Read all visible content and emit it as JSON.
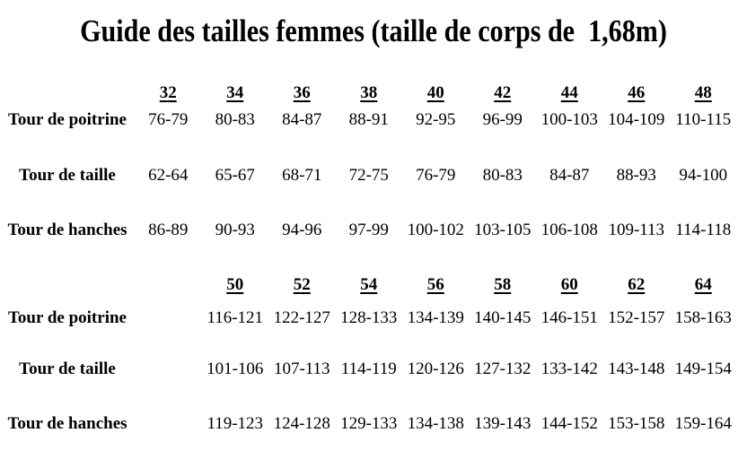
{
  "title": "Guide des tailles femmes (taille de corps de  1,68m)",
  "colors": {
    "text": "#000000",
    "background": "#ffffff"
  },
  "table1": {
    "sizes": [
      "32",
      "34",
      "36",
      "38",
      "40",
      "42",
      "44",
      "46",
      "48"
    ],
    "rows": [
      {
        "label": "Tour de poitrine",
        "values": [
          "76-79",
          "80-83",
          "84-87",
          "88-91",
          "92-95",
          "96-99",
          "100-103",
          "104-109",
          "110-115"
        ]
      },
      {
        "label": "Tour de taille",
        "values": [
          "62-64",
          "65-67",
          "68-71",
          "72-75",
          "76-79",
          "80-83",
          "84-87",
          "88-93",
          "94-100"
        ]
      },
      {
        "label": "Tour de hanches",
        "values": [
          "86-89",
          "90-93",
          "94-96",
          "97-99",
          "100-102",
          "103-105",
          "106-108",
          "109-113",
          "114-118"
        ]
      }
    ]
  },
  "table2": {
    "sizes": [
      "50",
      "52",
      "54",
      "56",
      "58",
      "60",
      "62",
      "64"
    ],
    "rows": [
      {
        "label": "Tour de poitrine",
        "values": [
          "116-121",
          "122-127",
          "128-133",
          "134-139",
          "140-145",
          "146-151",
          "152-157",
          "158-163"
        ]
      },
      {
        "label": "Tour de taille",
        "values": [
          "101-106",
          "107-113",
          "114-119",
          "120-126",
          "127-132",
          "133-142",
          "143-148",
          "149-154"
        ]
      },
      {
        "label": "Tour de hanches",
        "values": [
          "119-123",
          "124-128",
          "129-133",
          "134-138",
          "139-143",
          "144-152",
          "153-158",
          "159-164"
        ]
      }
    ]
  }
}
